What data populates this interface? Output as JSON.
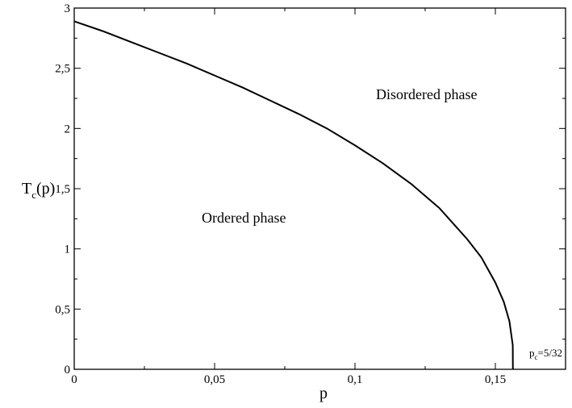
{
  "chart_data": {
    "type": "line",
    "xlabel": "p",
    "ylabel": {
      "main": "T",
      "sub": "c",
      "rest": "(p)"
    },
    "xlim": [
      0,
      0.175
    ],
    "ylim": [
      0,
      3
    ],
    "x_ticks": [
      {
        "value": 0,
        "label": "0"
      },
      {
        "value": 0.05,
        "label": "0,05"
      },
      {
        "value": 0.1,
        "label": "0,1"
      },
      {
        "value": 0.15,
        "label": "0,15"
      }
    ],
    "y_ticks": [
      {
        "value": 0,
        "label": "0"
      },
      {
        "value": 0.5,
        "label": "0,5"
      },
      {
        "value": 1,
        "label": "1"
      },
      {
        "value": 1.5,
        "label": "1,5"
      },
      {
        "value": 2,
        "label": "2"
      },
      {
        "value": 2.5,
        "label": "2,5"
      },
      {
        "value": 3,
        "label": "3"
      }
    ],
    "series": [
      {
        "x": [
          0,
          0.01,
          0.02,
          0.03,
          0.04,
          0.05,
          0.06,
          0.07,
          0.08,
          0.09,
          0.1,
          0.11,
          0.12,
          0.13,
          0.14,
          0.145,
          0.15,
          0.153,
          0.155,
          0.1562,
          0.15625
        ],
        "y": [
          2.89,
          2.81,
          2.72,
          2.63,
          2.54,
          2.44,
          2.34,
          2.23,
          2.12,
          2.0,
          1.86,
          1.71,
          1.54,
          1.34,
          1.08,
          0.93,
          0.72,
          0.56,
          0.4,
          0.2,
          0
        ]
      }
    ],
    "annotations": {
      "disordered": "Disordered phase",
      "ordered": "Ordered phase",
      "pc": {
        "main": "p",
        "sub": "c",
        "rest": "=5/32"
      }
    },
    "grid": false
  }
}
